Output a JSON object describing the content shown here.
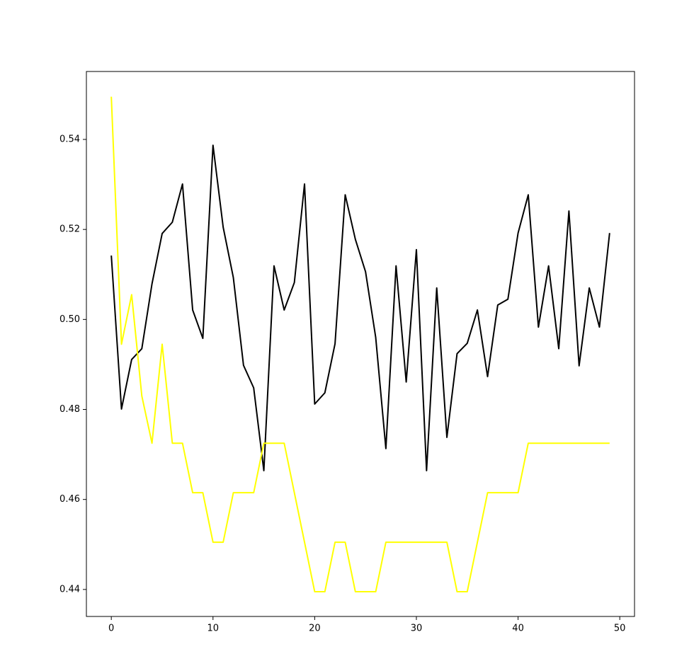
{
  "chart_data": {
    "type": "line",
    "x": [
      0,
      1,
      2,
      3,
      4,
      5,
      6,
      7,
      8,
      9,
      10,
      11,
      12,
      13,
      14,
      15,
      16,
      17,
      18,
      19,
      20,
      21,
      22,
      23,
      24,
      25,
      26,
      27,
      28,
      29,
      30,
      31,
      32,
      33,
      34,
      35,
      36,
      37,
      38,
      39,
      40,
      41,
      42,
      43,
      44,
      45,
      46,
      47,
      48,
      49
    ],
    "series": [
      {
        "color": "#000000",
        "values": [
          0.5142,
          0.4801,
          0.4911,
          0.4935,
          0.5079,
          0.5191,
          0.5216,
          0.5301,
          0.5021,
          0.4958,
          0.5387,
          0.5205,
          0.5093,
          0.4898,
          0.4848,
          0.4664,
          0.5119,
          0.5021,
          0.5082,
          0.5301,
          0.4812,
          0.4837,
          0.4946,
          0.5277,
          0.5178,
          0.5106,
          0.496,
          0.4713,
          0.5119,
          0.4861,
          0.5155,
          0.4664,
          0.507,
          0.4738,
          0.4924,
          0.4947,
          0.5021,
          0.4873,
          0.5032,
          0.5045,
          0.5192,
          0.5277,
          0.4983,
          0.5119,
          0.4935,
          0.5241,
          0.4897,
          0.507,
          0.4983,
          0.5192
        ]
      },
      {
        "color": "#ffff00",
        "values": [
          0.5495,
          0.4945,
          0.5055,
          0.483,
          0.4725,
          0.4945,
          0.4725,
          0.4725,
          0.4615,
          0.4615,
          0.4505,
          0.4505,
          0.4615,
          0.4615,
          0.4615,
          0.4725,
          0.4725,
          0.4725,
          0.4615,
          0.4505,
          0.4395,
          0.4395,
          0.4505,
          0.4505,
          0.4395,
          0.4395,
          0.4395,
          0.4505,
          0.4505,
          0.4505,
          0.4505,
          0.4505,
          0.4505,
          0.4505,
          0.4395,
          0.4395,
          0.4505,
          0.4615,
          0.4615,
          0.4615,
          0.4615,
          0.4725,
          0.4725,
          0.4725,
          0.4725,
          0.4725,
          0.4725,
          0.4725,
          0.4725,
          0.4725
        ]
      }
    ],
    "xlim": [
      -2.45,
      51.45
    ],
    "xticks": [
      0,
      10,
      20,
      30,
      40,
      50
    ],
    "ylim": [
      0.434,
      0.5551
    ],
    "yticks": [
      0.44,
      0.46,
      0.48,
      {
        "value": 0.5,
        "label": "0.50"
      },
      0.52,
      0.54
    ],
    "grid": false
  }
}
